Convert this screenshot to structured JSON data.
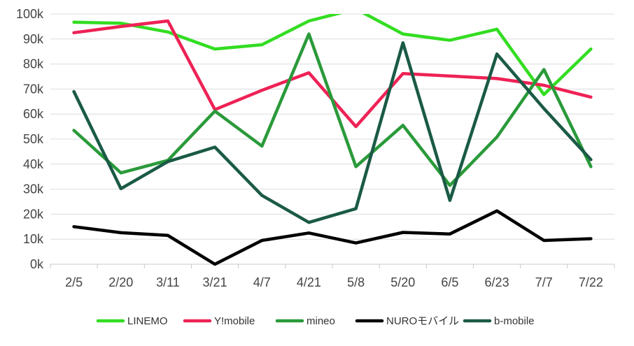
{
  "chart_data": {
    "type": "line",
    "title": "",
    "xlabel": "",
    "ylabel": "",
    "categories": [
      "2/5",
      "2/20",
      "3/11",
      "3/21",
      "4/7",
      "4/21",
      "5/8",
      "5/20",
      "6/5",
      "6/23",
      "7/7",
      "7/22"
    ],
    "yticks": [
      "0k",
      "10k",
      "20k",
      "30k",
      "40k",
      "50k",
      "60k",
      "70k",
      "80k",
      "90k",
      "100k"
    ],
    "ylim": [
      0,
      100000
    ],
    "grid": "horizontal",
    "legend_position": "bottom",
    "series": [
      {
        "name": "LINEMO",
        "color": "#33dd22",
        "values": [
          96700,
          96300,
          92800,
          86000,
          87700,
          97200,
          102000,
          92000,
          89500,
          93900,
          67800,
          86000
        ]
      },
      {
        "name": "Y!mobile",
        "color": "#ee2255",
        "values": [
          92500,
          95000,
          97200,
          61800,
          69500,
          76500,
          55000,
          76200,
          75200,
          74200,
          71500,
          66800
        ]
      },
      {
        "name": "mineo",
        "color": "#2a9a3a",
        "values": [
          53500,
          36500,
          41500,
          61200,
          47200,
          92000,
          39000,
          55500,
          31500,
          50800,
          77800,
          39000
        ]
      },
      {
        "name": "NUROモバイル",
        "color": "#000000",
        "values": [
          15000,
          12600,
          11500,
          0,
          9500,
          12500,
          8500,
          12700,
          12100,
          21300,
          9500,
          10200
        ]
      },
      {
        "name": "b-mobile",
        "color": "#1a5a46",
        "values": [
          69000,
          30200,
          41000,
          46800,
          27500,
          16700,
          22200,
          88500,
          25500,
          84000,
          62200,
          41800
        ]
      }
    ]
  }
}
